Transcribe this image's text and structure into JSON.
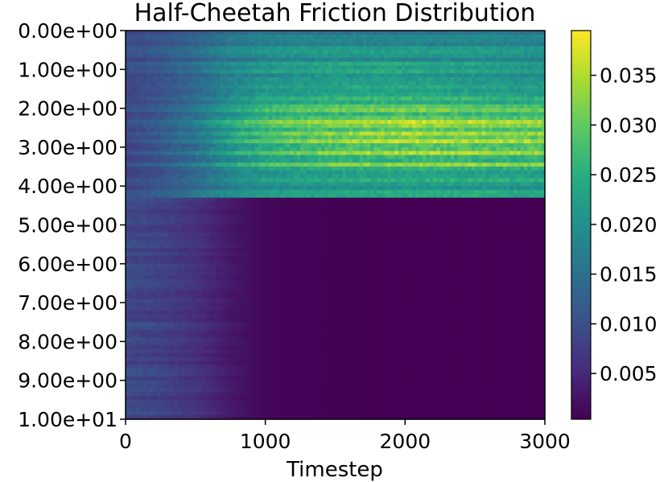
{
  "chart_data": {
    "type": "heatmap",
    "title": "Half-Cheetah Friction Distribution",
    "xlabel": "Timestep",
    "ylabel": "",
    "x_ticks": [
      0,
      1000,
      2000,
      3000
    ],
    "x_tick_labels": [
      "0",
      "1000",
      "2000",
      "3000"
    ],
    "xlim": [
      0,
      3000
    ],
    "y_ticks": [
      0,
      1,
      2,
      3,
      4,
      5,
      6,
      7,
      8,
      9,
      10
    ],
    "y_tick_labels": [
      "0.00e+00",
      "1.00e+00",
      "2.00e+00",
      "3.00e+00",
      "4.00e+00",
      "5.00e+00",
      "6.00e+00",
      "7.00e+00",
      "8.00e+00",
      "9.00e+00",
      "1.00e+01"
    ],
    "ylim": [
      0,
      10
    ],
    "y_direction": "top-to-bottom",
    "colormap": "viridis",
    "colorbar_ticks": [
      0.005,
      0.01,
      0.015,
      0.02,
      0.025,
      0.03,
      0.035
    ],
    "colorbar_tick_labels": [
      "0.005",
      "0.010",
      "0.015",
      "0.020",
      "0.025",
      "0.030",
      "0.035"
    ],
    "colorbar_range": [
      0.0004,
      0.0395
    ],
    "grid": false,
    "value_description": "Density per friction value over timesteps. Rows from 0.0 to ~4.3 increase to ~0.02-0.038 after t~1000 (peak near friction 2.5-3.2); rows above ~4.3 decay to near 0 after t~1000.",
    "time_samples": [
      0,
      250,
      500,
      750,
      1000,
      1500,
      2000,
      2500,
      3000
    ],
    "friction_samples": [
      0.0,
      1.0,
      2.0,
      2.5,
      3.0,
      3.5,
      4.0,
      5.0,
      6.0,
      7.0,
      8.0,
      9.0,
      10.0
    ],
    "values": [
      [
        0.009,
        0.01,
        0.012,
        0.015,
        0.016,
        0.016,
        0.016,
        0.017,
        0.016
      ],
      [
        0.009,
        0.011,
        0.014,
        0.018,
        0.02,
        0.022,
        0.022,
        0.021,
        0.02
      ],
      [
        0.009,
        0.011,
        0.015,
        0.021,
        0.025,
        0.027,
        0.028,
        0.027,
        0.026
      ],
      [
        0.009,
        0.012,
        0.016,
        0.023,
        0.028,
        0.031,
        0.033,
        0.032,
        0.031
      ],
      [
        0.009,
        0.012,
        0.016,
        0.023,
        0.028,
        0.032,
        0.034,
        0.033,
        0.033
      ],
      [
        0.009,
        0.011,
        0.015,
        0.021,
        0.025,
        0.027,
        0.028,
        0.028,
        0.027
      ],
      [
        0.009,
        0.011,
        0.014,
        0.018,
        0.02,
        0.021,
        0.022,
        0.022,
        0.021
      ],
      [
        0.009,
        0.008,
        0.006,
        0.003,
        0.001,
        0.0005,
        0.0004,
        0.0004,
        0.0004
      ],
      [
        0.009,
        0.008,
        0.006,
        0.003,
        0.001,
        0.0005,
        0.0004,
        0.0004,
        0.0004
      ],
      [
        0.009,
        0.008,
        0.006,
        0.003,
        0.001,
        0.0005,
        0.0004,
        0.0004,
        0.0004
      ],
      [
        0.009,
        0.008,
        0.006,
        0.003,
        0.001,
        0.0005,
        0.0004,
        0.0004,
        0.0004
      ],
      [
        0.009,
        0.008,
        0.006,
        0.003,
        0.001,
        0.0005,
        0.0004,
        0.0004,
        0.0004
      ],
      [
        0.009,
        0.008,
        0.006,
        0.003,
        0.001,
        0.0005,
        0.0004,
        0.0004,
        0.0004
      ]
    ]
  }
}
